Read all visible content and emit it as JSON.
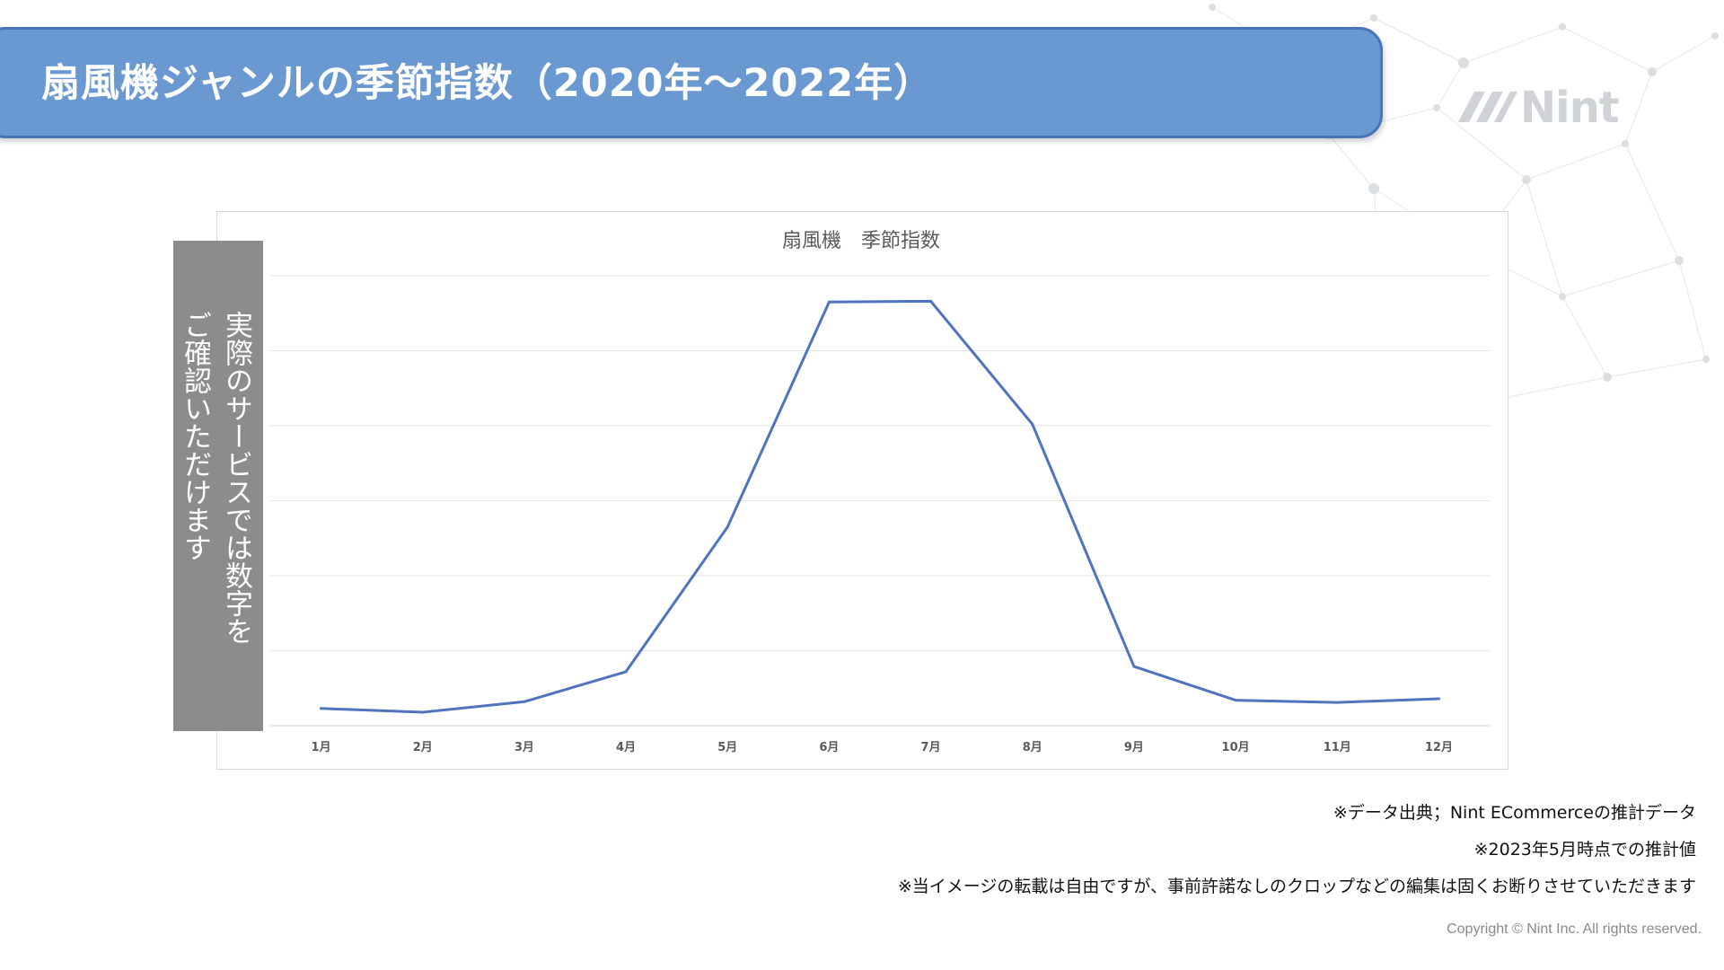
{
  "header": {
    "title": "扇風機ジャンルの季節指数（2020年〜2022年）"
  },
  "logo": {
    "text": "Nint",
    "icon": "nint-logo-icon"
  },
  "overlay": {
    "line1": "実際のサービスでは数字を",
    "line2": "ご確認いただけます"
  },
  "notes": [
    "※データ出典；Nint ECommerceの推計データ",
    "※2023年5月時点での推計値",
    "※当イメージの転載は自由ですが、事前許諾なしのクロップなどの編集は固くお断りさせていただきます"
  ],
  "copyright": "Copyright © Nint Inc. All rights reserved.",
  "colors": {
    "banner": "#6a99d2",
    "banner_border": "#4a74b8",
    "series": "#4f73be",
    "overlay": "#8c8c8c"
  },
  "chart_data": {
    "type": "line",
    "title": "扇風機　季節指数",
    "categories": [
      "1月",
      "2月",
      "3月",
      "4月",
      "5月",
      "6月",
      "7月",
      "8月",
      "9月",
      "10月",
      "11月",
      "12月"
    ],
    "series": [
      {
        "values": [
          0.23,
          0.18,
          0.32,
          0.72,
          2.65,
          5.65,
          5.66,
          4.02,
          0.79,
          0.34,
          0.31,
          0.36
        ]
      }
    ],
    "ylim": [
      0,
      6
    ],
    "y_tick_labels_visible": false,
    "grid": true,
    "legend": "none"
  }
}
